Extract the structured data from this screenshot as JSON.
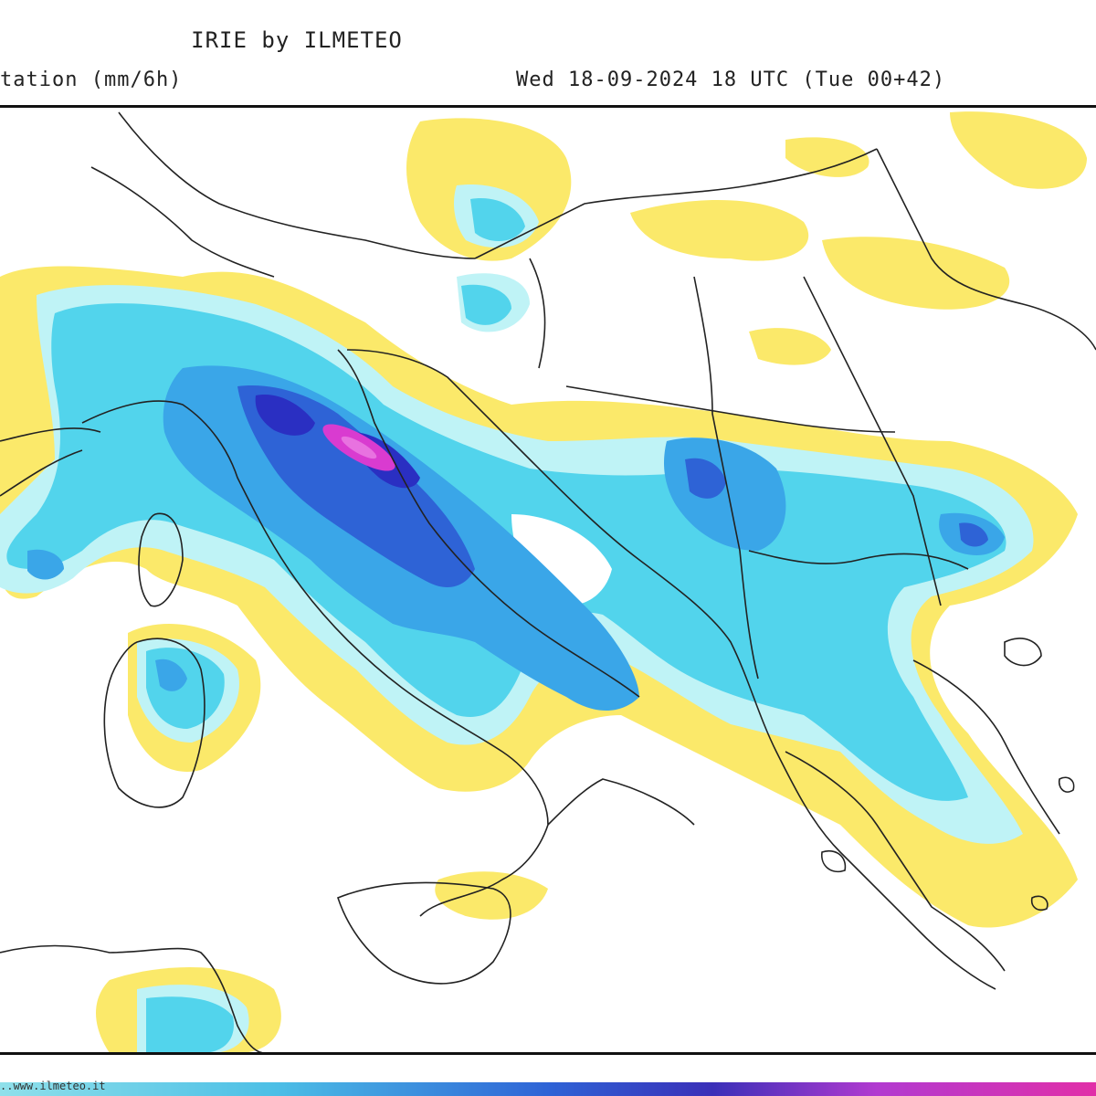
{
  "header": {
    "title": "IRIE by ILMETEO",
    "variable": "tation (mm/6h)",
    "valid_time": "Wed 18-09-2024 18 UTC (Tue 00+42)"
  },
  "footer": {
    "credit": "..www.ilmeteo.it"
  },
  "colors": {
    "light_yellow": "#fbe96a",
    "cyan_light": "#bff3f6",
    "cyan": "#52d4ec",
    "blue_light": "#3aa6e8",
    "blue": "#2e63d6",
    "blue_dark": "#2a2fc2",
    "magenta": "#d93bd0",
    "border": "#222222"
  }
}
